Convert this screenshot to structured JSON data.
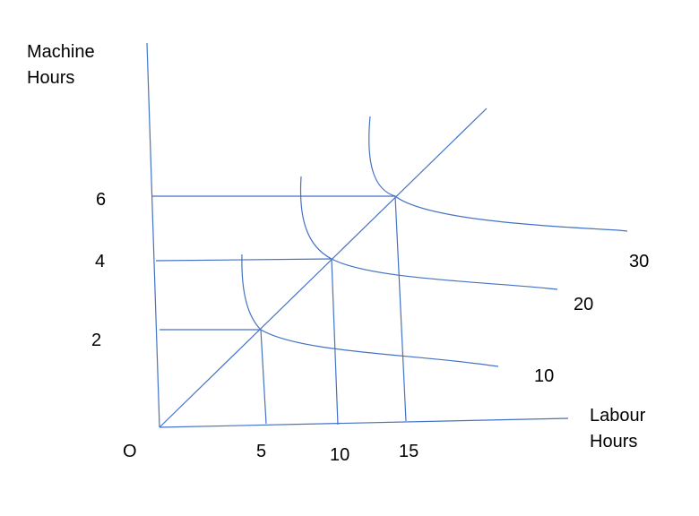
{
  "y_axis_label": {
    "line1": "Machine",
    "line2": "Hours"
  },
  "x_axis_label": {
    "line1": "Labour",
    "line2": "Hours"
  },
  "origin_label": "O",
  "y_ticks": [
    {
      "id": "y-tick-6",
      "label": "6"
    },
    {
      "id": "y-tick-4",
      "label": "4"
    },
    {
      "id": "y-tick-2",
      "label": "2"
    }
  ],
  "x_ticks": [
    {
      "id": "x-tick-5",
      "label": "5"
    },
    {
      "id": "x-tick-10",
      "label": "10"
    },
    {
      "id": "x-tick-15",
      "label": "15"
    }
  ],
  "isoquant_labels": [
    {
      "id": "isoquant-label-30",
      "label": "30"
    },
    {
      "id": "isoquant-label-20",
      "label": "20"
    },
    {
      "id": "isoquant-label-10",
      "label": "10"
    }
  ],
  "colors": {
    "line": "#4472c4",
    "text": "#000000",
    "background": "#ffffff"
  }
}
